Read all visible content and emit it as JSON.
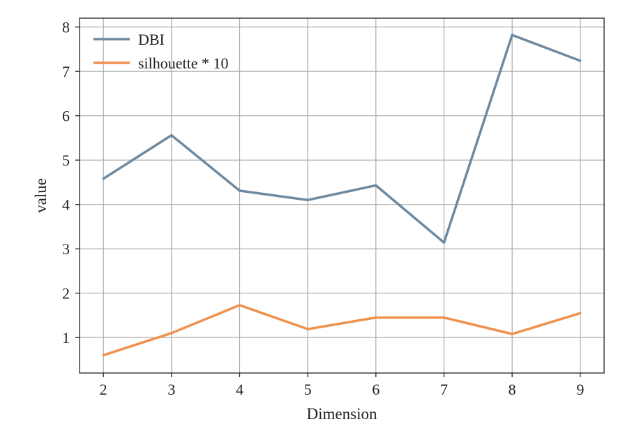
{
  "chart_data": {
    "type": "line",
    "title": "",
    "xlabel": "Dimension",
    "ylabel": "value",
    "x": [
      2,
      3,
      4,
      5,
      6,
      7,
      8,
      9
    ],
    "xlim": [
      1.65,
      9.35
    ],
    "ylim": [
      0.2,
      8.2
    ],
    "xticks": [
      "2",
      "3",
      "4",
      "5",
      "6",
      "7",
      "8",
      "9"
    ],
    "yticks": [
      "1",
      "2",
      "3",
      "4",
      "5",
      "6",
      "7",
      "8"
    ],
    "grid": true,
    "legend_position": "top-left",
    "series": [
      {
        "name": "DBI",
        "color": "#6e8aa0",
        "values": [
          4.58,
          5.56,
          4.31,
          4.1,
          4.43,
          3.14,
          7.82,
          7.24
        ]
      },
      {
        "name": "silhouette * 10",
        "color": "#f0924e",
        "values": [
          0.6,
          1.1,
          1.73,
          1.19,
          1.45,
          1.45,
          1.08,
          1.55
        ]
      }
    ]
  }
}
